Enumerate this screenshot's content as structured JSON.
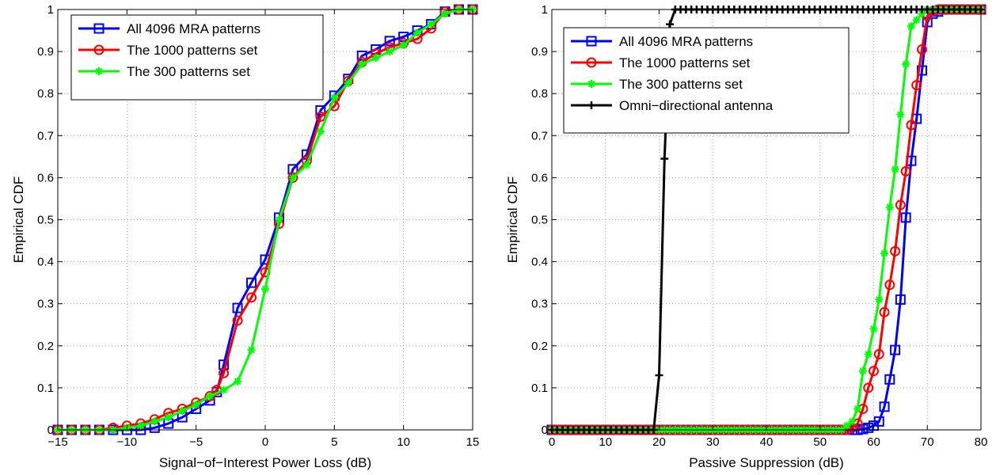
{
  "colors": {
    "all_4096": "#0000ff",
    "set_1000": "#ff0000",
    "set_300": "#00ff00",
    "omni": "#000000"
  },
  "chart_data": [
    {
      "type": "line",
      "title": "",
      "xlabel": "Signal−of−Interest Power Loss (dB)",
      "ylabel": "Empirical CDF",
      "xlim": [
        -15,
        15
      ],
      "ylim": [
        0,
        1
      ],
      "xticks": [
        -15,
        -10,
        -5,
        0,
        5,
        10,
        15
      ],
      "xtick_labels": [
        "−15",
        "−10",
        "−5",
        "0",
        "5",
        "10",
        "15"
      ],
      "yticks": [
        0,
        0.1,
        0.2,
        0.3,
        0.4,
        0.5,
        0.6,
        0.7,
        0.8,
        0.9,
        1
      ],
      "ytick_labels": [
        "0",
        "0.1",
        "0.2",
        "0.3",
        "0.4",
        "0.5",
        "0.6",
        "0.7",
        "0.8",
        "0.9",
        "1"
      ],
      "grid": true,
      "legend_position": "top-left",
      "series": [
        {
          "name": "All 4096 MRA patterns",
          "marker": "square",
          "color": "#0000ff",
          "x": [
            -15,
            -14,
            -13,
            -12,
            -11,
            -10,
            -9,
            -8,
            -7,
            -6,
            -5,
            -4,
            -3.5,
            -3,
            -2,
            -1,
            0,
            1,
            2,
            3,
            4,
            5,
            6,
            7,
            8,
            9,
            10,
            11,
            12,
            13,
            14,
            15
          ],
          "y": [
            0,
            0,
            0,
            0,
            0,
            0,
            0,
            0.005,
            0.015,
            0.03,
            0.05,
            0.07,
            0.09,
            0.155,
            0.29,
            0.35,
            0.405,
            0.505,
            0.62,
            0.655,
            0.76,
            0.795,
            0.835,
            0.89,
            0.905,
            0.925,
            0.935,
            0.95,
            0.965,
            0.995,
            1,
            1
          ]
        },
        {
          "name": "The 1000 patterns set",
          "marker": "circle",
          "color": "#ff0000",
          "x": [
            -15,
            -14,
            -13,
            -12,
            -11,
            -10,
            -9,
            -8,
            -7,
            -6,
            -5,
            -4,
            -3.5,
            -3,
            -2,
            -1,
            0,
            1,
            2,
            3,
            4,
            5,
            6,
            7,
            8,
            9,
            10,
            11,
            12,
            13,
            14,
            15
          ],
          "y": [
            0,
            0,
            0,
            0,
            0.005,
            0.01,
            0.015,
            0.025,
            0.04,
            0.05,
            0.065,
            0.08,
            0.095,
            0.135,
            0.26,
            0.315,
            0.375,
            0.49,
            0.6,
            0.64,
            0.745,
            0.77,
            0.83,
            0.875,
            0.895,
            0.91,
            0.92,
            0.93,
            0.955,
            0.995,
            1,
            1
          ]
        },
        {
          "name": "The 300 patterns set",
          "marker": "star",
          "color": "#00ff00",
          "x": [
            -15,
            -14,
            -13,
            -12,
            -11,
            -10,
            -9,
            -8,
            -7,
            -6,
            -5,
            -4,
            -3,
            -2,
            -1,
            0,
            1,
            2,
            3,
            4,
            5,
            6,
            7,
            8,
            9,
            10,
            11,
            12,
            13,
            14,
            15
          ],
          "y": [
            0,
            0,
            0,
            0,
            0,
            0.005,
            0.01,
            0.02,
            0.03,
            0.045,
            0.06,
            0.08,
            0.095,
            0.115,
            0.19,
            0.335,
            0.5,
            0.6,
            0.63,
            0.71,
            0.79,
            0.825,
            0.87,
            0.885,
            0.9,
            0.915,
            0.945,
            0.965,
            0.99,
            1,
            1
          ]
        }
      ]
    },
    {
      "type": "line",
      "title": "",
      "xlabel": "Passive Suppression (dB)",
      "ylabel": "Empirical CDF",
      "xlim": [
        0,
        80
      ],
      "ylim": [
        0,
        1
      ],
      "xticks": [
        0,
        10,
        20,
        30,
        40,
        50,
        60,
        70,
        80
      ],
      "xtick_labels": [
        "0",
        "10",
        "20",
        "30",
        "40",
        "50",
        "60",
        "70",
        "80"
      ],
      "yticks": [
        0,
        0.1,
        0.2,
        0.3,
        0.4,
        0.5,
        0.6,
        0.7,
        0.8,
        0.9,
        1
      ],
      "ytick_labels": [
        "0",
        "0.1",
        "0.2",
        "0.3",
        "0.4",
        "0.5",
        "0.6",
        "0.7",
        "0.8",
        "0.9",
        "1"
      ],
      "grid": true,
      "legend_position": "top-left",
      "series": [
        {
          "name": "All 4096 MRA patterns",
          "marker": "square",
          "color": "#0000ff",
          "x": [
            0,
            1,
            2,
            3,
            4,
            5,
            6,
            7,
            8,
            9,
            10,
            11,
            12,
            13,
            14,
            15,
            16,
            17,
            18,
            19,
            20,
            21,
            22,
            23,
            24,
            25,
            26,
            27,
            28,
            29,
            30,
            31,
            32,
            33,
            34,
            35,
            36,
            37,
            38,
            39,
            40,
            41,
            42,
            43,
            44,
            45,
            46,
            47,
            48,
            49,
            50,
            51,
            52,
            53,
            54,
            55,
            56,
            57,
            58,
            59,
            60,
            61,
            62,
            63,
            64,
            65,
            66,
            67,
            68,
            69,
            70,
            71,
            72,
            73,
            74,
            75,
            76,
            77,
            78,
            79,
            80
          ],
          "y": [
            0,
            0,
            0,
            0,
            0,
            0,
            0,
            0,
            0,
            0,
            0,
            0,
            0,
            0,
            0,
            0,
            0,
            0,
            0,
            0,
            0,
            0,
            0,
            0,
            0,
            0,
            0,
            0,
            0,
            0,
            0,
            0,
            0,
            0,
            0,
            0,
            0,
            0,
            0,
            0,
            0,
            0,
            0,
            0,
            0,
            0,
            0,
            0,
            0,
            0,
            0,
            0,
            0,
            0,
            0,
            0,
            0,
            0,
            0.002,
            0.005,
            0.01,
            0.02,
            0.055,
            0.12,
            0.19,
            0.31,
            0.505,
            0.64,
            0.74,
            0.855,
            0.97,
            0.99,
            0.995,
            1,
            1,
            1,
            1,
            1,
            1,
            1,
            1
          ]
        },
        {
          "name": "The 1000 patterns set",
          "marker": "circle",
          "color": "#ff0000",
          "x": [
            0,
            1,
            2,
            3,
            4,
            5,
            6,
            7,
            8,
            9,
            10,
            11,
            12,
            13,
            14,
            15,
            16,
            17,
            18,
            19,
            20,
            21,
            22,
            23,
            24,
            25,
            26,
            27,
            28,
            29,
            30,
            31,
            32,
            33,
            34,
            35,
            36,
            37,
            38,
            39,
            40,
            41,
            42,
            43,
            44,
            45,
            46,
            47,
            48,
            49,
            50,
            51,
            52,
            53,
            54,
            55,
            56,
            57,
            58,
            59,
            60,
            61,
            62,
            63,
            64,
            65,
            66,
            67,
            68,
            69,
            70,
            71,
            72,
            73,
            74,
            75,
            76,
            77,
            78,
            79,
            80
          ],
          "y": [
            0,
            0,
            0,
            0,
            0,
            0,
            0,
            0,
            0,
            0,
            0,
            0,
            0,
            0,
            0,
            0,
            0,
            0,
            0,
            0,
            0,
            0,
            0,
            0,
            0,
            0,
            0,
            0,
            0,
            0,
            0,
            0,
            0,
            0,
            0,
            0,
            0,
            0,
            0,
            0,
            0,
            0,
            0,
            0,
            0,
            0,
            0,
            0,
            0,
            0,
            0,
            0,
            0,
            0,
            0,
            0,
            0.005,
            0.015,
            0.05,
            0.1,
            0.14,
            0.18,
            0.28,
            0.345,
            0.425,
            0.535,
            0.615,
            0.725,
            0.82,
            0.905,
            0.985,
            0.995,
            1,
            1,
            1,
            1,
            1,
            1,
            1,
            1,
            1
          ]
        },
        {
          "name": "The 300 patterns set",
          "marker": "star",
          "color": "#00ff00",
          "x": [
            0,
            1,
            2,
            3,
            4,
            5,
            6,
            7,
            8,
            9,
            10,
            11,
            12,
            13,
            14,
            15,
            16,
            17,
            18,
            19,
            20,
            21,
            22,
            23,
            24,
            25,
            26,
            27,
            28,
            29,
            30,
            31,
            32,
            33,
            34,
            35,
            36,
            37,
            38,
            39,
            40,
            41,
            42,
            43,
            44,
            45,
            46,
            47,
            48,
            49,
            50,
            51,
            52,
            53,
            54,
            55,
            56,
            57,
            58,
            59,
            60,
            61,
            62,
            63,
            64,
            65,
            66,
            67,
            68,
            69,
            70,
            71,
            72,
            73,
            74,
            75,
            76,
            77,
            78,
            79,
            80
          ],
          "y": [
            0,
            0,
            0,
            0,
            0,
            0,
            0,
            0,
            0,
            0,
            0,
            0,
            0,
            0,
            0,
            0,
            0,
            0,
            0,
            0,
            0,
            0,
            0,
            0,
            0,
            0,
            0,
            0,
            0,
            0,
            0,
            0,
            0,
            0,
            0,
            0,
            0,
            0,
            0,
            0,
            0,
            0,
            0,
            0,
            0,
            0,
            0,
            0,
            0,
            0,
            0,
            0,
            0,
            0,
            0,
            0.01,
            0.02,
            0.05,
            0.14,
            0.18,
            0.24,
            0.31,
            0.42,
            0.53,
            0.62,
            0.75,
            0.87,
            0.96,
            0.975,
            0.99,
            1,
            1,
            1,
            1,
            1,
            1,
            1,
            1,
            1,
            1,
            1
          ]
        },
        {
          "name": "Omni−directional antenna",
          "marker": "plus",
          "color": "#000000",
          "x": [
            0,
            1,
            2,
            3,
            4,
            5,
            6,
            7,
            8,
            9,
            10,
            11,
            12,
            13,
            14,
            15,
            16,
            17,
            18,
            19,
            20,
            21,
            22,
            23,
            24,
            25,
            26,
            27,
            28,
            29,
            30,
            31,
            32,
            33,
            34,
            35,
            36,
            37,
            38,
            39,
            40,
            41,
            42,
            43,
            44,
            45,
            46,
            47,
            48,
            49,
            50,
            51,
            52,
            53,
            54,
            55,
            56,
            57,
            58,
            59,
            60,
            61,
            62,
            63,
            64,
            65,
            66,
            67,
            68,
            69,
            70,
            71,
            72,
            73,
            74,
            75,
            76,
            77,
            78,
            79,
            80
          ],
          "y": [
            0,
            0,
            0,
            0,
            0,
            0,
            0,
            0,
            0,
            0,
            0,
            0,
            0,
            0,
            0,
            0,
            0,
            0,
            0,
            0,
            0.13,
            0.645,
            0.965,
            1,
            1,
            1,
            1,
            1,
            1,
            1,
            1,
            1,
            1,
            1,
            1,
            1,
            1,
            1,
            1,
            1,
            1,
            1,
            1,
            1,
            1,
            1,
            1,
            1,
            1,
            1,
            1,
            1,
            1,
            1,
            1,
            1,
            1,
            1,
            1,
            1,
            1,
            1,
            1,
            1,
            1,
            1,
            1,
            1,
            1,
            1,
            1,
            1,
            1,
            1,
            1,
            1,
            1,
            1,
            1,
            1,
            1
          ]
        }
      ]
    }
  ]
}
